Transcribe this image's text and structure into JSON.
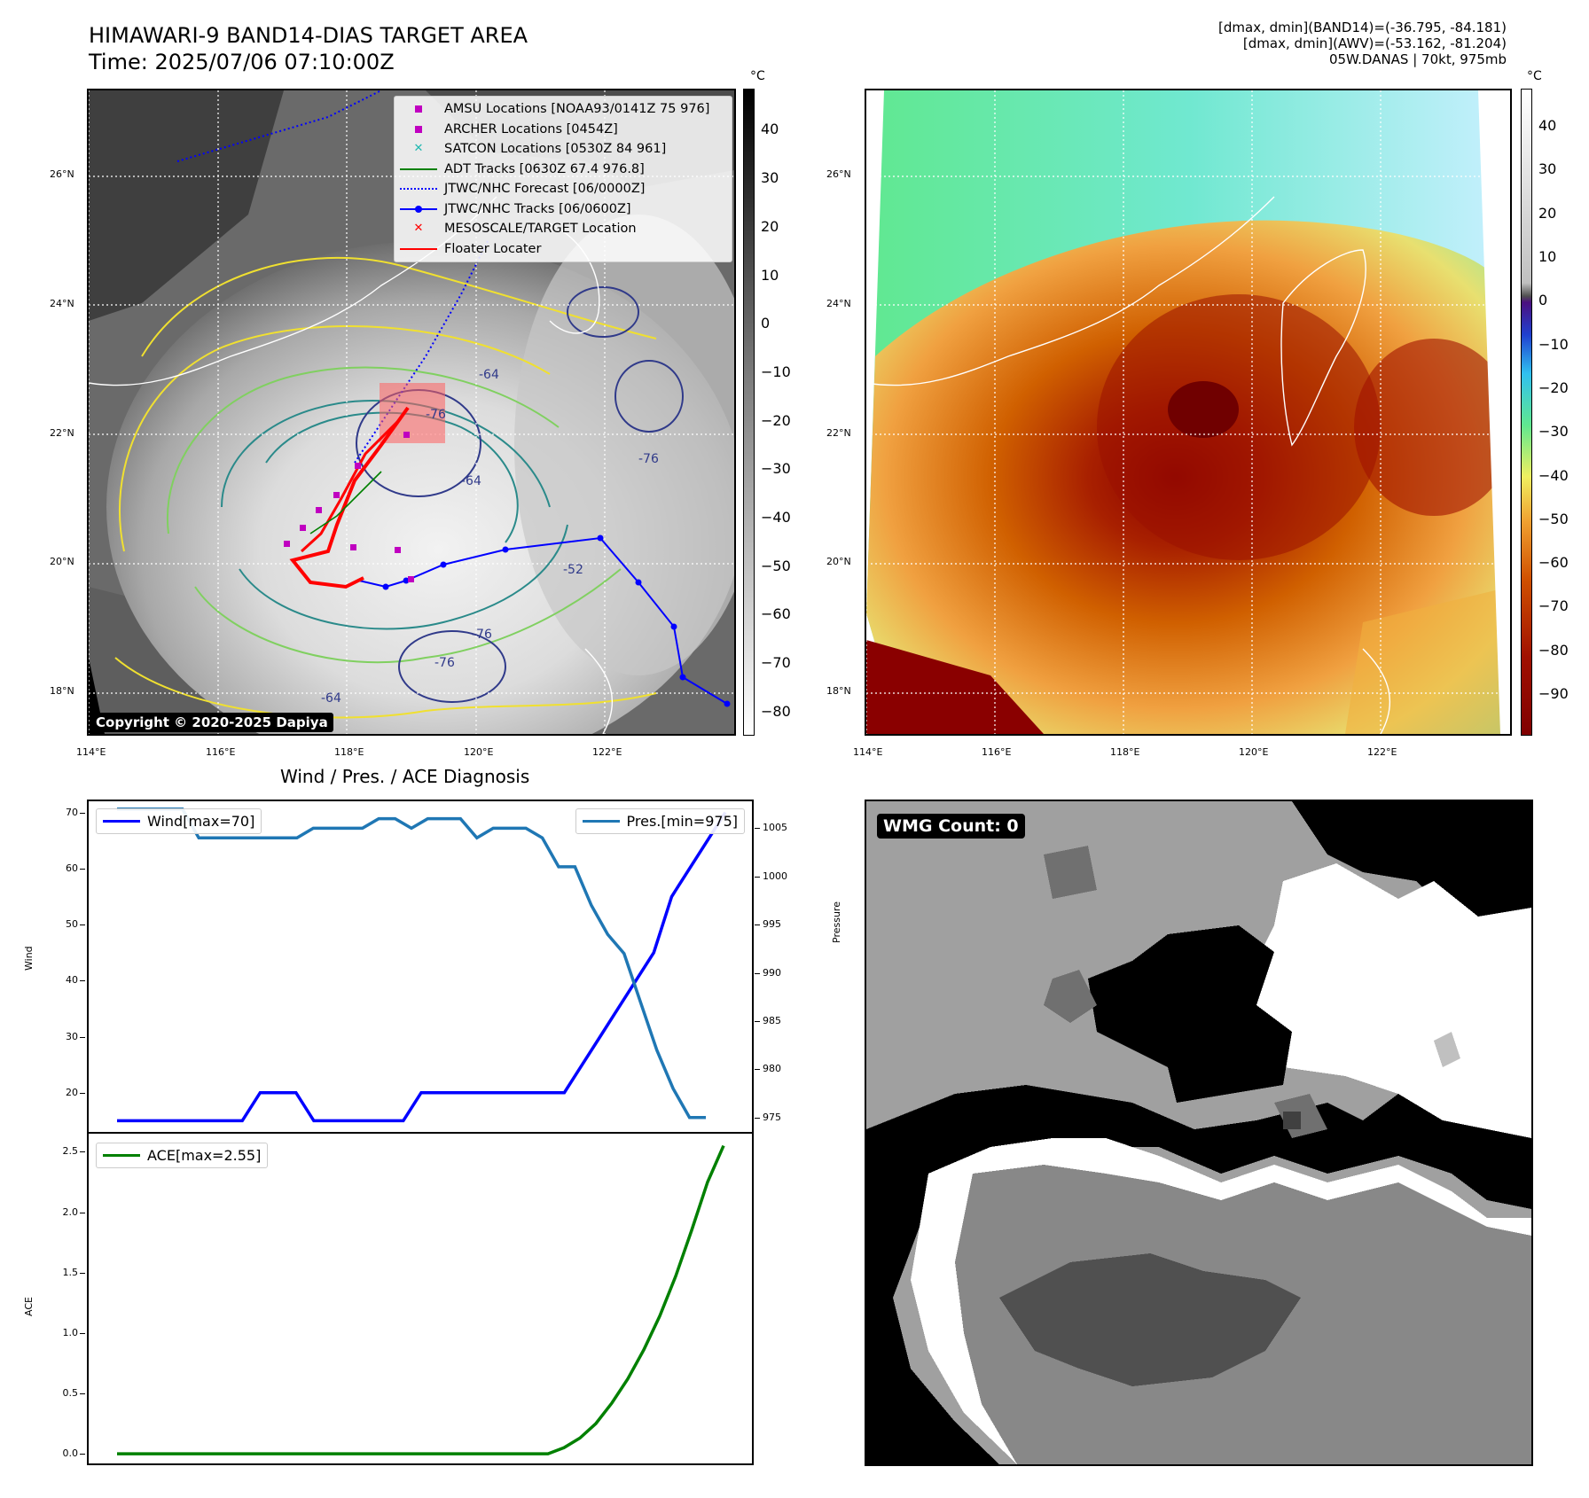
{
  "header": {
    "title": "HIMAWARI-9 BAND14-DIAS TARGET AREA",
    "time": "Time: 2025/07/06 07:10:00Z",
    "info_line1": "[dmax, dmin](BAND14)=(-36.795, -84.181)",
    "info_line2": "[dmax, dmin](AWV)=(-53.162, -81.204)",
    "info_line3": "05W.DANAS | 70kt, 975mb"
  },
  "map": {
    "lon_labels": [
      "114°E",
      "116°E",
      "118°E",
      "120°E",
      "122°E"
    ],
    "lat_labels": [
      "26°N",
      "24°N",
      "22°N",
      "20°N",
      "18°N"
    ],
    "unit": "°C",
    "copyright": "Copyright © 2020-2025 Dapiya",
    "contour_labels": [
      "-76",
      "-64",
      "-76",
      "-64",
      "-76",
      "-76",
      "-52",
      "-64"
    ]
  },
  "left_colorbar": {
    "ticks": [
      "40",
      "30",
      "20",
      "10",
      "0",
      "−10",
      "−20",
      "−30",
      "−40",
      "−50",
      "−60",
      "−70",
      "−80"
    ]
  },
  "right_colorbar": {
    "ticks": [
      "40",
      "30",
      "20",
      "10",
      "0",
      "−10",
      "−20",
      "−30",
      "−40",
      "−50",
      "−60",
      "−70",
      "−80",
      "−90"
    ]
  },
  "map_legend": [
    {
      "label": "AMSU Locations [NOAA93/0141Z 75 976]",
      "symbol": "square",
      "color": "#c000c0"
    },
    {
      "label": "ARCHER Locations [0454Z]",
      "symbol": "square",
      "color": "#c000c0"
    },
    {
      "label": "SATCON Locations [0530Z 84 961]",
      "symbol": "x",
      "color": "#20b8b0"
    },
    {
      "label": "ADT Tracks [0630Z 67.4 976.8]",
      "symbol": "line",
      "color": "#008000"
    },
    {
      "label": "JTWC/NHC Forecast [06/0000Z]",
      "symbol": "dotted",
      "color": "#0000ff"
    },
    {
      "label": "JTWC/NHC Tracks [06/0600Z]",
      "symbol": "line-dot",
      "color": "#0000ff"
    },
    {
      "label": "MESOSCALE/TARGET Location",
      "symbol": "x",
      "color": "#ff0000"
    },
    {
      "label": "Floater Locater",
      "symbol": "line",
      "color": "#ff0000"
    }
  ],
  "diag": {
    "title": "Wind / Pres. / ACE Diagnosis",
    "wind_ylabel": "Wind",
    "pres_ylabel": "Pressure",
    "ace_ylabel": "ACE",
    "wind_legend": "Wind[max=70]",
    "pres_legend": "Pres.[min=975]",
    "ace_legend": "ACE[max=2.55]",
    "wind_ticks": [
      "70",
      "60",
      "50",
      "40",
      "30",
      "20"
    ],
    "pres_ticks": [
      "1005",
      "1000",
      "995",
      "990",
      "985",
      "980",
      "975"
    ],
    "ace_ticks": [
      "2.5",
      "2.0",
      "1.5",
      "1.0",
      "0.5",
      "0.0"
    ]
  },
  "wmg": {
    "label": "WMG Count: 0"
  },
  "chart_data": [
    {
      "type": "line",
      "title": "Wind / Pres. / ACE Diagnosis",
      "ylabel": "Wind",
      "ylim": [
        13,
        72
      ],
      "series": [
        {
          "name": "Wind[max=70]",
          "color": "#0000ff",
          "values": [
            15,
            15,
            15,
            15,
            15,
            15,
            15,
            15,
            20,
            20,
            20,
            15,
            15,
            15,
            15,
            15,
            15,
            20,
            20,
            20,
            20,
            20,
            20,
            20,
            20,
            20,
            25,
            30,
            35,
            40,
            45,
            55,
            60,
            65,
            70
          ]
        }
      ]
    },
    {
      "type": "line",
      "ylabel": "Pressure",
      "ylim": [
        973.5,
        1007.8
      ],
      "series": [
        {
          "name": "Pres.[min=975]",
          "color": "#1f77b4",
          "values": [
            1007,
            1007,
            1007,
            1007,
            1007,
            1004,
            1004,
            1004,
            1004,
            1004,
            1004,
            1004,
            1005,
            1005,
            1005,
            1005,
            1006,
            1006,
            1005,
            1006,
            1006,
            1006,
            1004,
            1005,
            1005,
            1005,
            1004,
            1001,
            1001,
            997,
            994,
            992,
            987,
            982,
            978,
            975,
            975
          ]
        }
      ]
    },
    {
      "type": "line",
      "ylabel": "ACE",
      "ylim": [
        -0.08,
        2.65
      ],
      "series": [
        {
          "name": "ACE[max=2.55]",
          "color": "#008000",
          "values": [
            0,
            0,
            0,
            0,
            0,
            0,
            0,
            0,
            0,
            0,
            0,
            0,
            0,
            0,
            0,
            0,
            0,
            0,
            0,
            0,
            0,
            0,
            0,
            0,
            0,
            0,
            0,
            0,
            0.05,
            0.13,
            0.25,
            0.42,
            0.62,
            0.86,
            1.14,
            1.47,
            1.85,
            2.25,
            2.55
          ]
        }
      ]
    }
  ]
}
